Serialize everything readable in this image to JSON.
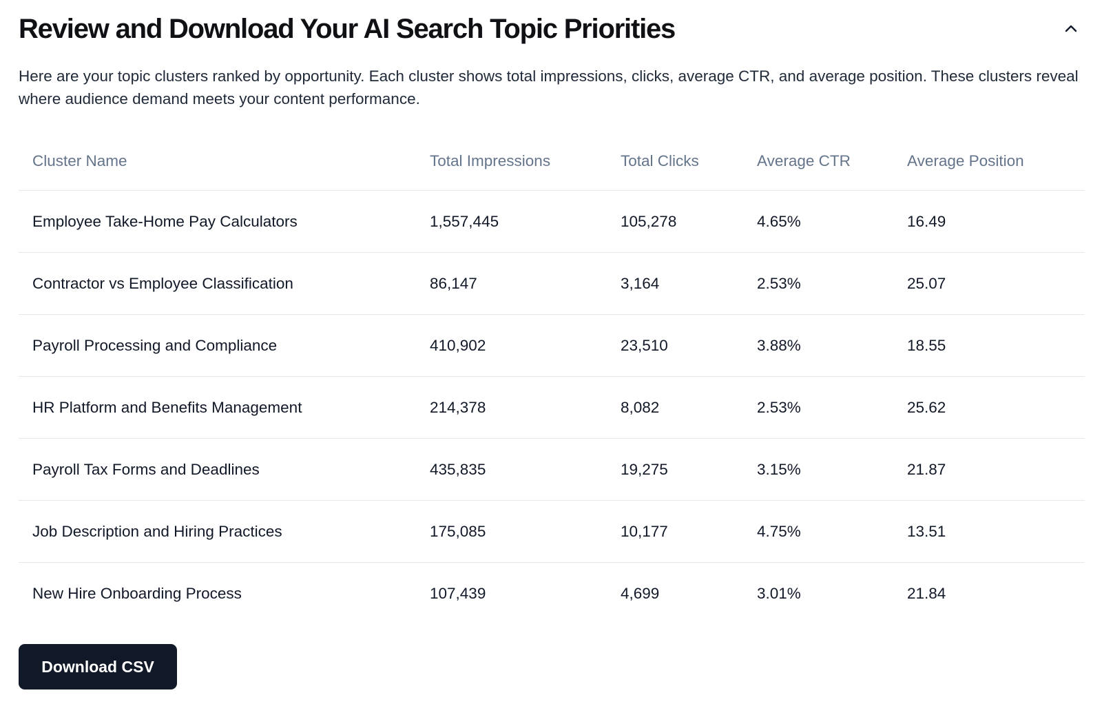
{
  "section": {
    "title": "Review and Download Your AI Search Topic Priorities",
    "collapse_icon": "chevron-up-icon",
    "description": "Here are your topic clusters ranked by opportunity. Each cluster shows total impressions, clicks, average CTR, and average position. These clusters reveal where audience demand meets your content performance."
  },
  "table": {
    "columns": [
      "Cluster Name",
      "Total Impressions",
      "Total Clicks",
      "Average CTR",
      "Average Position"
    ],
    "rows": [
      [
        "Employee Take-Home Pay Calculators",
        "1,557,445",
        "105,278",
        "4.65%",
        "16.49"
      ],
      [
        "Contractor vs Employee Classification",
        "86,147",
        "3,164",
        "2.53%",
        "25.07"
      ],
      [
        "Payroll Processing and Compliance",
        "410,902",
        "23,510",
        "3.88%",
        "18.55"
      ],
      [
        "HR Platform and Benefits Management",
        "214,378",
        "8,082",
        "2.53%",
        "25.62"
      ],
      [
        "Payroll Tax Forms and Deadlines",
        "435,835",
        "19,275",
        "3.15%",
        "21.87"
      ],
      [
        "Job Description and Hiring Practices",
        "175,085",
        "10,177",
        "4.75%",
        "13.51"
      ],
      [
        "New Hire Onboarding Process",
        "107,439",
        "4,699",
        "3.01%",
        "21.84"
      ]
    ]
  },
  "actions": {
    "download_label": "Download CSV"
  },
  "colors": {
    "button_bg": "#111827",
    "header_text": "#64748b",
    "divider": "#e5e7eb"
  }
}
